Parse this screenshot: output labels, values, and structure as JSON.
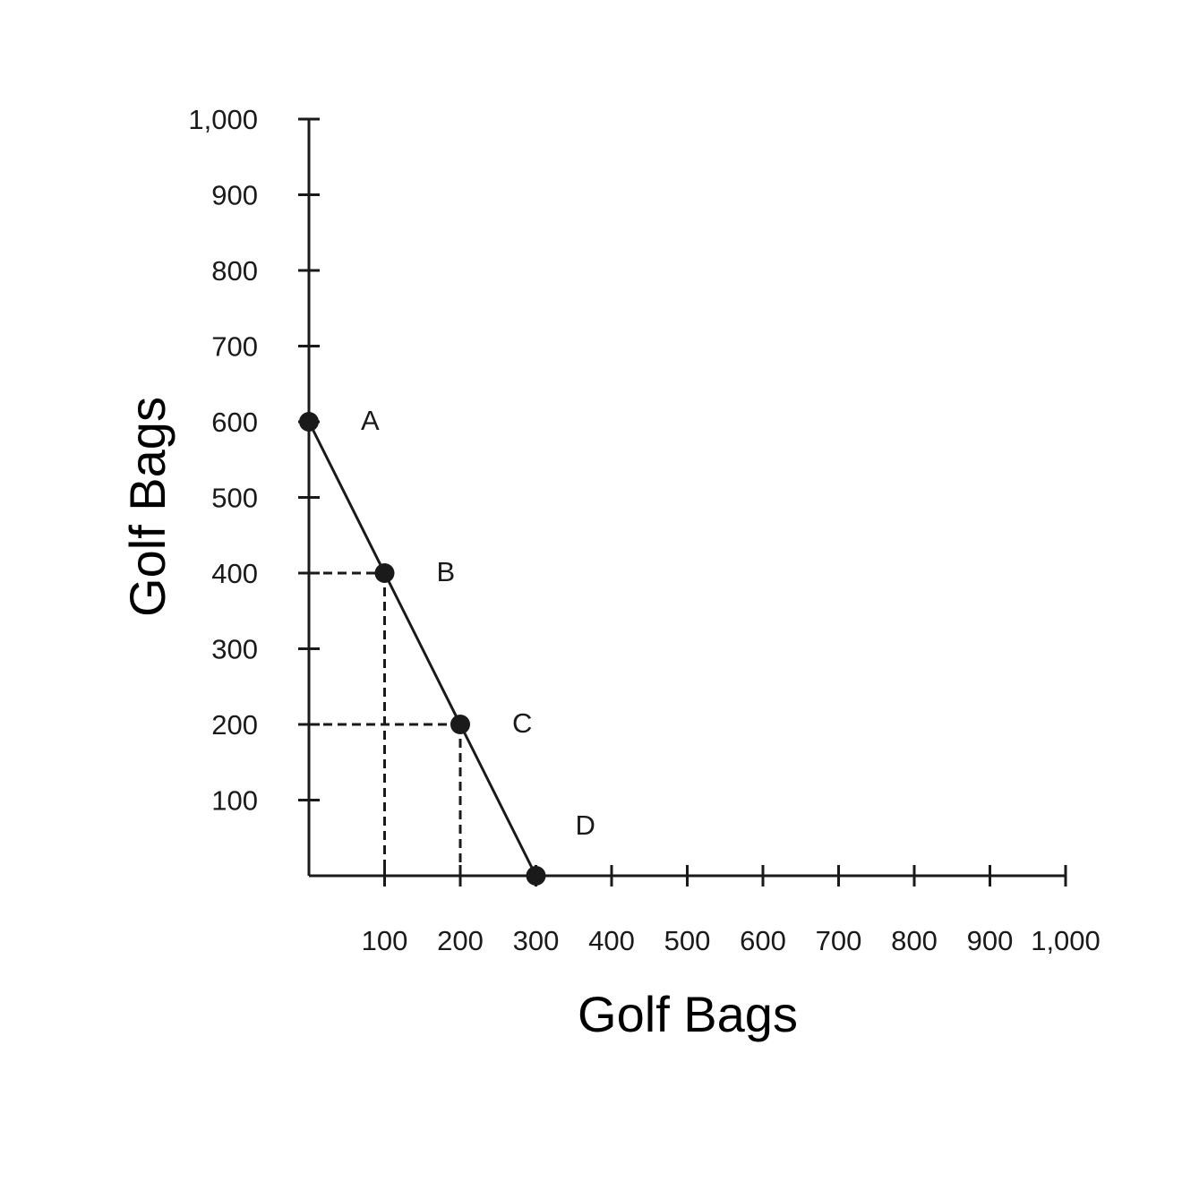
{
  "chart_data": {
    "type": "line",
    "xlabel": "Golf Bags",
    "ylabel": "Golf Bags",
    "xlim": [
      0,
      1000
    ],
    "ylim": [
      0,
      1000
    ],
    "x_ticks": [
      "100",
      "200",
      "300",
      "400",
      "500",
      "600",
      "700",
      "800",
      "900",
      "1,000"
    ],
    "y_ticks": [
      "100",
      "200",
      "300",
      "400",
      "500",
      "600",
      "700",
      "800",
      "900",
      "1,000"
    ],
    "grid": false,
    "series": [
      {
        "points": [
          {
            "label": "A",
            "x": 0,
            "y": 600
          },
          {
            "label": "B",
            "x": 100,
            "y": 400
          },
          {
            "label": "C",
            "x": 200,
            "y": 200
          },
          {
            "label": "D",
            "x": 300,
            "y": 0
          }
        ]
      }
    ],
    "guide_points": [
      "B",
      "C"
    ],
    "colors": {
      "line": "#1a1a1a",
      "text": "#1a1a1a"
    }
  }
}
